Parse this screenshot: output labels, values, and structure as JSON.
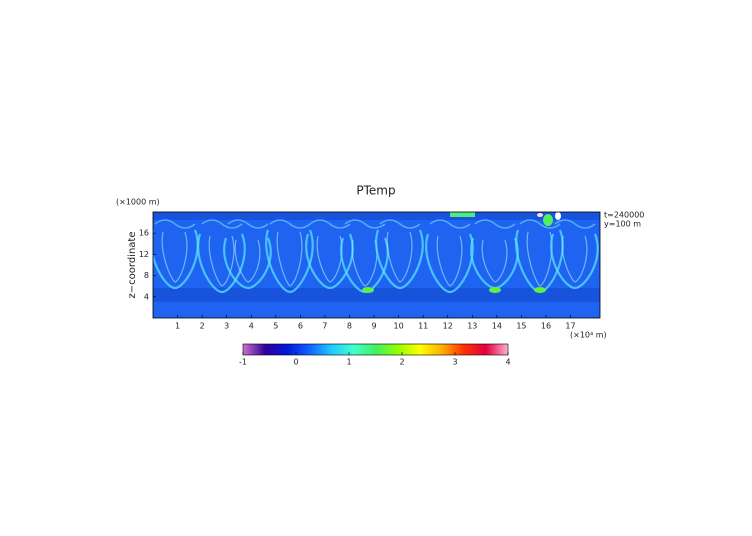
{
  "chart_data": {
    "type": "heatmap",
    "title": "PTemp",
    "ylabel": "z−coordinate",
    "x_unit": "(×10⁴ m)",
    "y_unit": "(×1000 m)",
    "annotations": [
      "t=240000",
      "y=100 m"
    ],
    "xlim": [
      0,
      18.2
    ],
    "xticks": [
      1,
      2,
      3,
      4,
      5,
      6,
      7,
      8,
      9,
      10,
      11,
      12,
      13,
      14,
      15,
      16,
      17
    ],
    "ylim": [
      0,
      20
    ],
    "yticks": [
      4,
      8,
      12,
      16
    ],
    "clim": [
      -1,
      4
    ],
    "cticks": [
      -1,
      0,
      1,
      2,
      3,
      4
    ],
    "colormap": [
      "#d070d0",
      "#30009a",
      "#0018d8",
      "#1060ff",
      "#20c8ff",
      "#40ffd0",
      "#40f060",
      "#90ff00",
      "#ffff00",
      "#ffb000",
      "#ff3000",
      "#e00040",
      "#ffb0d0"
    ]
  }
}
